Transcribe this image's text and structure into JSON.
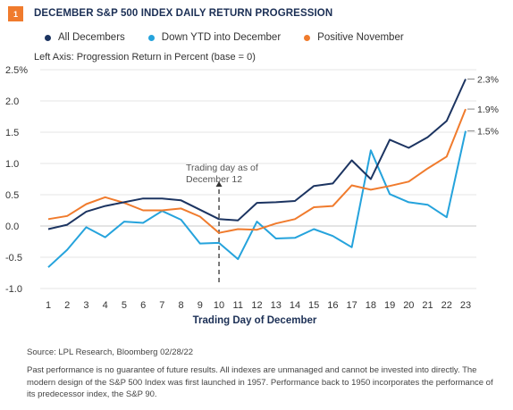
{
  "figure": {
    "number": "1",
    "title": "DECEMBER S&P 500 INDEX DAILY RETURN PROGRESSION",
    "axis_note": "Left Axis: Progression Return in Percent (base = 0)"
  },
  "colors": {
    "badge": "#f07b2d",
    "title": "#1b2f55",
    "all_decembers": "#1c3461",
    "down_ytd": "#25a3dc",
    "positive_november": "#f07b2d"
  },
  "chart_data": {
    "type": "line",
    "title": "DECEMBER S&P 500 INDEX DAILY RETURN PROGRESSION",
    "xlabel": "Trading Day of December",
    "ylabel": "Left Axis: Progression Return in Percent (base = 0)",
    "x": [
      1,
      2,
      3,
      4,
      5,
      6,
      7,
      8,
      9,
      10,
      11,
      12,
      13,
      14,
      15,
      16,
      17,
      18,
      19,
      20,
      21,
      22,
      23
    ],
    "ylim": [
      -1.0,
      2.5
    ],
    "yticks": [
      "2.5%",
      "2.0",
      "1.5",
      "1.0",
      "0.5",
      "0.0",
      "-0.5",
      "-1.0"
    ],
    "ytick_values": [
      2.5,
      2.0,
      1.5,
      1.0,
      0.5,
      0.0,
      -0.5,
      -1.0
    ],
    "grid": "horizontal",
    "legend": "top",
    "series": [
      {
        "name": "All Decembers",
        "color": "#1c3461",
        "end_label": "2.3%",
        "values": [
          -0.05,
          0.02,
          0.23,
          0.32,
          0.38,
          0.44,
          0.44,
          0.41,
          0.26,
          0.11,
          0.09,
          0.37,
          0.38,
          0.4,
          0.64,
          0.68,
          1.05,
          0.75,
          1.38,
          1.25,
          1.42,
          1.68,
          2.35
        ]
      },
      {
        "name": "Down YTD into December",
        "color": "#25a3dc",
        "end_label": "1.5%",
        "values": [
          -0.66,
          -0.38,
          -0.02,
          -0.18,
          0.07,
          0.05,
          0.24,
          0.1,
          -0.28,
          -0.27,
          -0.53,
          0.07,
          -0.2,
          -0.19,
          -0.05,
          -0.16,
          -0.34,
          1.21,
          0.51,
          0.38,
          0.34,
          0.14,
          1.52
        ]
      },
      {
        "name": "Positive November",
        "color": "#f07b2d",
        "end_label": "1.9%",
        "values": [
          0.11,
          0.16,
          0.35,
          0.46,
          0.37,
          0.25,
          0.25,
          0.28,
          0.15,
          -0.11,
          -0.05,
          -0.06,
          0.04,
          0.11,
          0.3,
          0.32,
          0.65,
          0.58,
          0.64,
          0.71,
          0.92,
          1.11,
          1.87
        ]
      }
    ],
    "annotation": {
      "text_line1": "Trading day as of",
      "text_line2": "December 12",
      "x": 10
    }
  },
  "footer": {
    "source": "Source: LPL Research, Bloomberg  02/28/22",
    "disclaimer": "Past performance is no guarantee of future results. All indexes are unmanaged and cannot be invested into directly. The modern design of the S&P 500 Index was first launched in 1957. Performance back to 1950 incorporates the performance of its predecessor index, the S&P 90."
  }
}
